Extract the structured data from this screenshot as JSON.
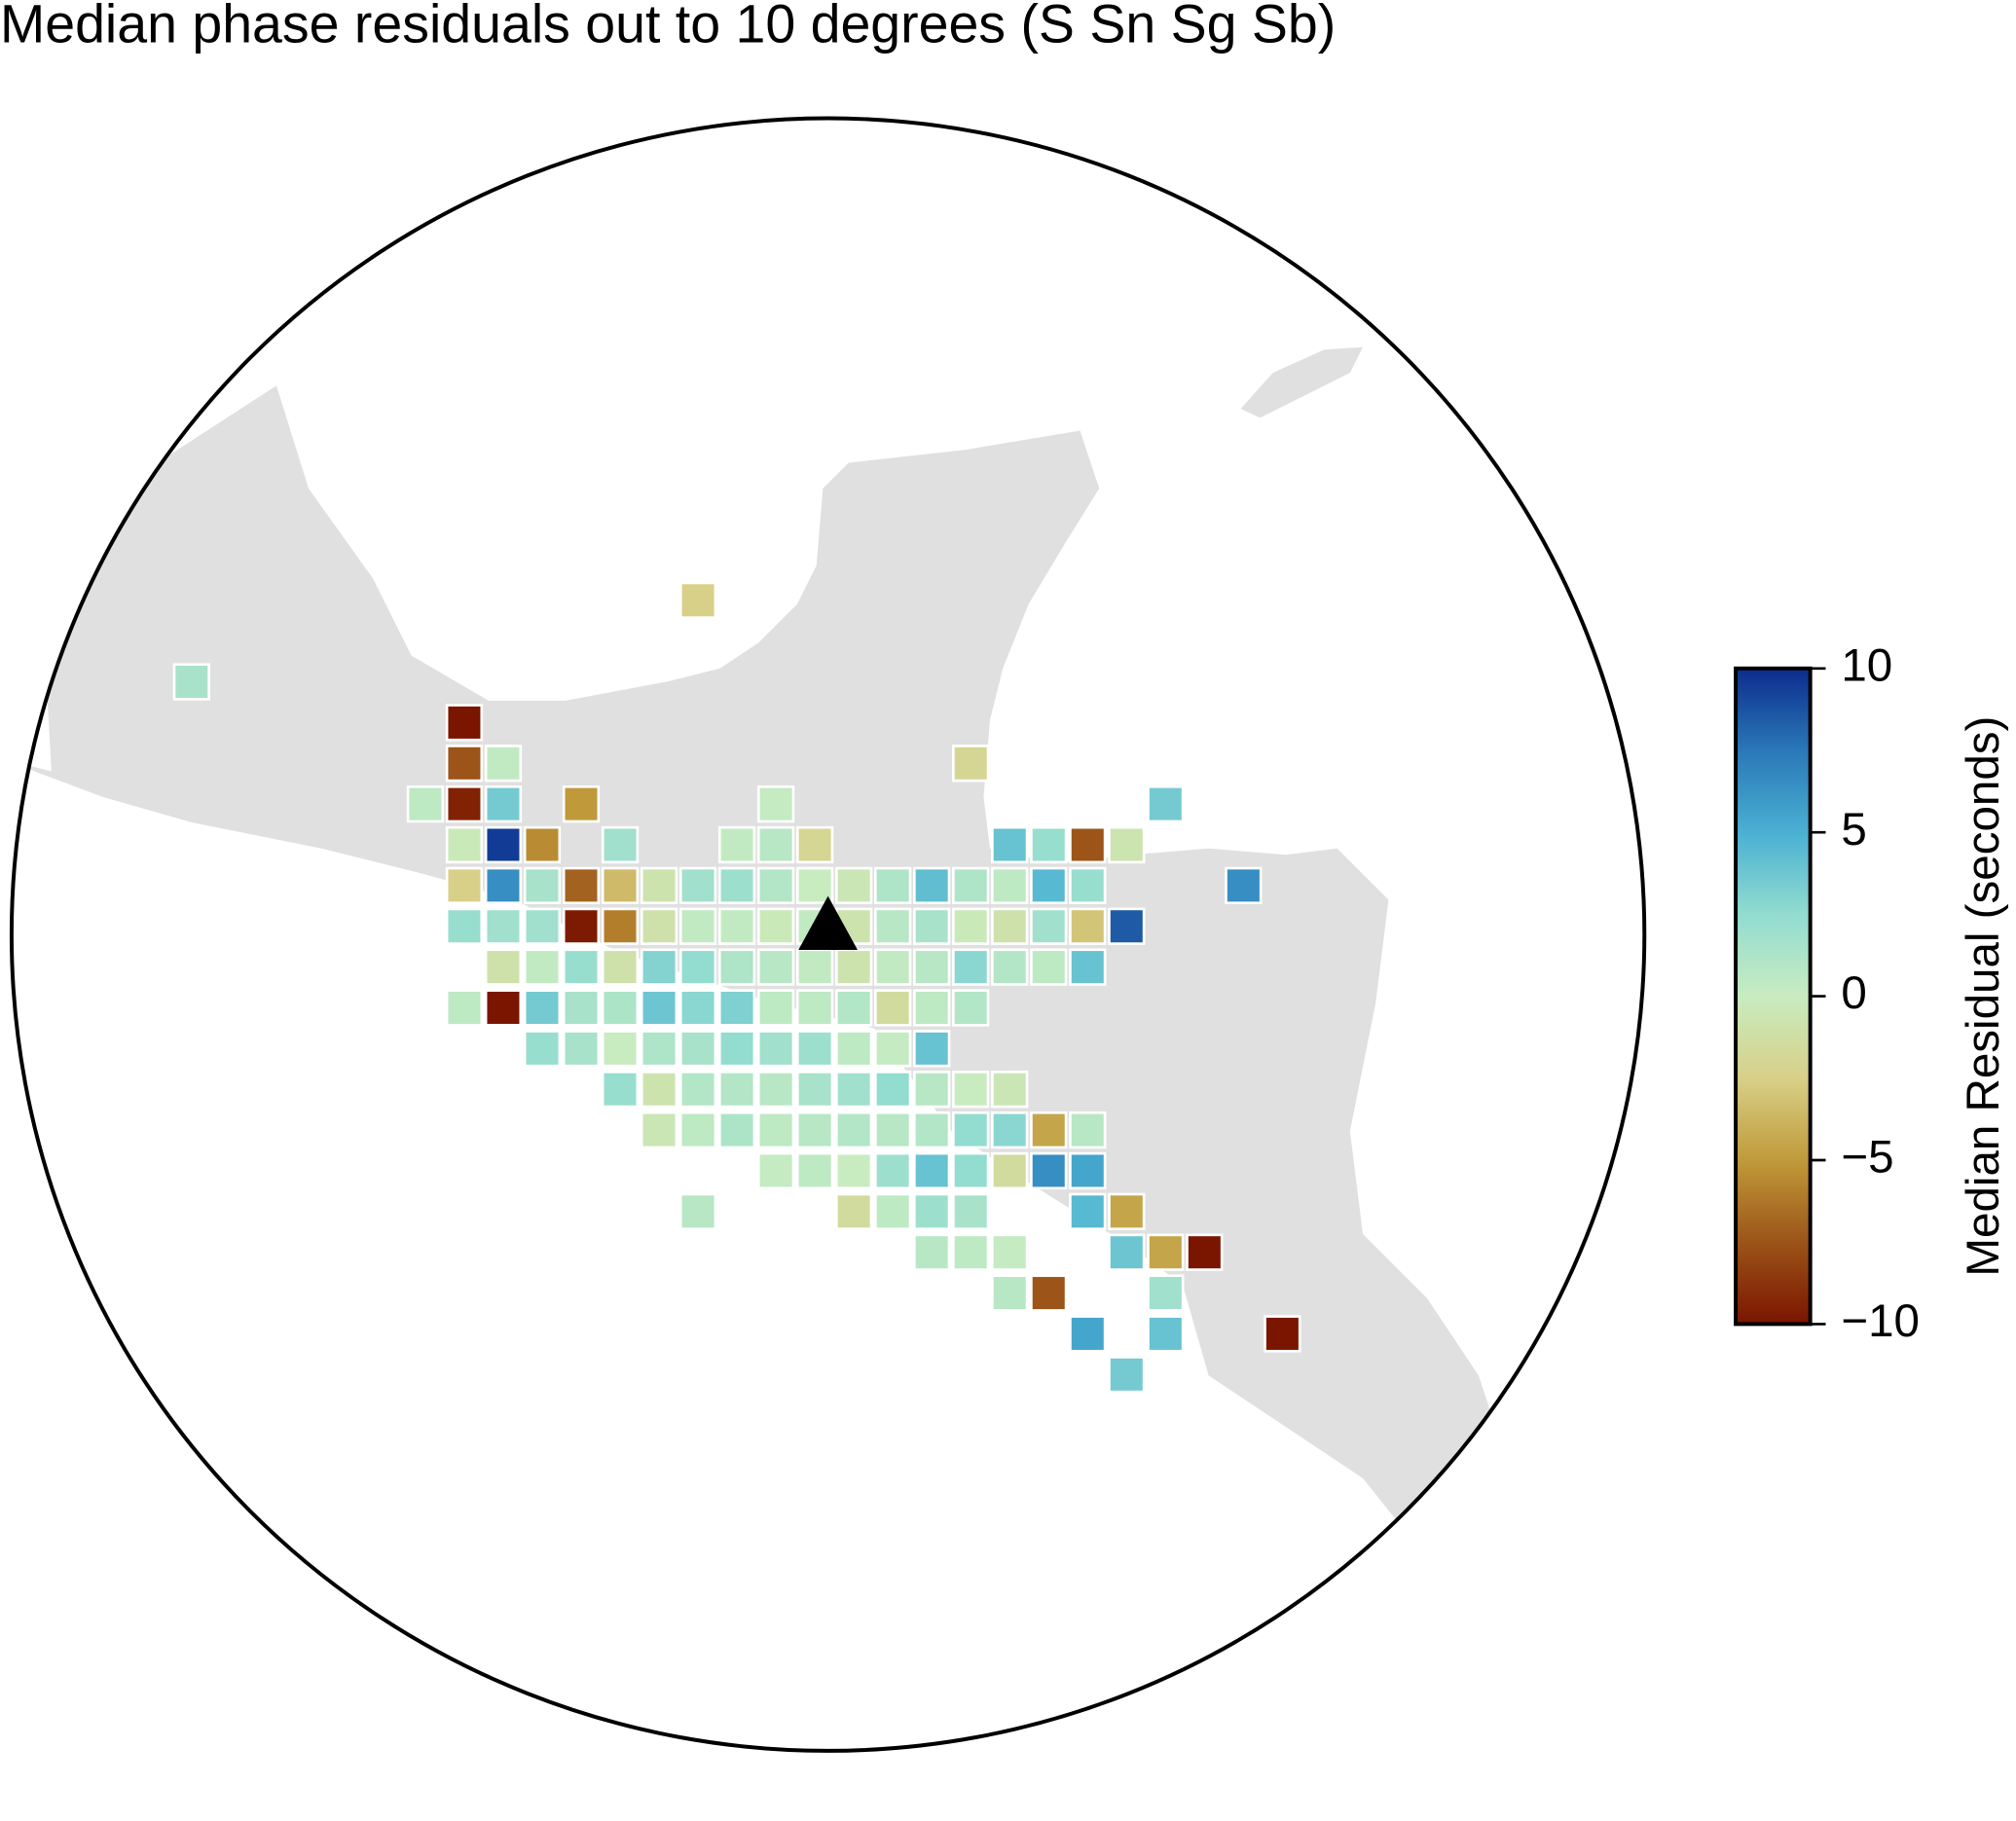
{
  "title": "Median phase residuals out to 10 degrees (S Sn Sg Sb)",
  "map": {
    "cells": [
      [
        null,
        null,
        null,
        null,
        null,
        null,
        null,
        null,
        null,
        null,
        null,
        null,
        null,
        -2.5,
        null,
        null,
        null,
        null,
        null,
        null,
        null,
        null,
        null,
        null,
        null,
        null,
        null,
        null,
        null
      ],
      [
        null,
        null,
        null,
        null,
        null,
        null,
        null,
        null,
        null,
        null,
        null,
        null,
        null,
        null,
        null,
        null,
        null,
        null,
        null,
        null,
        null,
        null,
        null,
        null,
        null,
        null,
        null,
        null,
        null
      ],
      [
        1.5,
        null,
        null,
        null,
        null,
        null,
        null,
        null,
        null,
        null,
        null,
        null,
        null,
        null,
        null,
        null,
        null,
        null,
        null,
        null,
        null,
        null,
        null,
        null,
        null,
        null,
        null,
        null,
        null
      ],
      [
        null,
        null,
        null,
        null,
        null,
        null,
        null,
        -10,
        null,
        null,
        null,
        null,
        null,
        null,
        null,
        null,
        null,
        null,
        null,
        null,
        null,
        null,
        null,
        null,
        null,
        null,
        null,
        null,
        null
      ],
      [
        null,
        null,
        null,
        null,
        null,
        null,
        null,
        -7.5,
        0.3,
        null,
        null,
        null,
        null,
        null,
        null,
        null,
        null,
        null,
        null,
        null,
        -2,
        null,
        null,
        null,
        null,
        null,
        null,
        null,
        null
      ],
      [
        null,
        null,
        null,
        null,
        null,
        null,
        0.5,
        -9.5,
        3.5,
        null,
        -5,
        null,
        null,
        null,
        null,
        0.2,
        null,
        null,
        null,
        null,
        null,
        null,
        null,
        null,
        null,
        3.5,
        null,
        null,
        null
      ],
      [
        null,
        null,
        null,
        null,
        null,
        null,
        null,
        -0.3,
        9.5,
        -5.5,
        null,
        1.8,
        null,
        null,
        0.3,
        0.8,
        -2,
        null,
        null,
        null,
        null,
        4,
        2.2,
        -7.5,
        -0.7,
        null,
        null,
        null,
        null
      ],
      [
        null,
        null,
        null,
        null,
        null,
        null,
        null,
        -2.5,
        6.5,
        1.5,
        -7,
        -3.5,
        -0.8,
        1.8,
        2,
        1,
        0,
        -0.5,
        1.2,
        4.2,
        1.2,
        0.5,
        4.5,
        2.2,
        null,
        null,
        null,
        6.5,
        null
      ],
      [
        null,
        null,
        null,
        null,
        null,
        null,
        null,
        2.2,
        1.8,
        1.8,
        -9.8,
        -6,
        -1,
        0.3,
        0.3,
        -0.3,
        0.3,
        -0.8,
        0.8,
        1.5,
        -0.3,
        -1,
        1.8,
        -3,
        8.5,
        null,
        null,
        null,
        null
      ],
      [
        null,
        null,
        null,
        null,
        null,
        null,
        null,
        null,
        -1,
        0.3,
        2.2,
        -1,
        3,
        2.5,
        1.2,
        0.8,
        0.3,
        -0.8,
        0.3,
        0.8,
        2.8,
        1,
        0.5,
        4,
        null,
        null,
        null,
        null,
        null
      ],
      [
        null,
        null,
        null,
        null,
        null,
        null,
        null,
        0.5,
        -10,
        3.5,
        1.5,
        1.3,
        3.8,
        2.8,
        3.2,
        0.5,
        0.5,
        1,
        -1.5,
        0.5,
        1,
        null,
        null,
        null,
        null,
        null,
        null,
        null,
        null
      ],
      [
        null,
        null,
        null,
        null,
        null,
        null,
        null,
        null,
        null,
        2.2,
        1.5,
        0,
        1.2,
        1.5,
        2.5,
        1.8,
        2,
        0.5,
        0.2,
        4,
        null,
        null,
        null,
        null,
        null,
        null,
        null,
        null,
        null
      ],
      [
        null,
        null,
        null,
        null,
        null,
        null,
        null,
        null,
        null,
        null,
        null,
        2.2,
        -0.8,
        1,
        1,
        0.8,
        1.5,
        1.8,
        2.5,
        0.8,
        0,
        -0.5,
        null,
        null,
        null,
        null,
        null,
        null,
        null
      ],
      [
        null,
        null,
        null,
        null,
        null,
        null,
        null,
        null,
        null,
        null,
        null,
        null,
        -0.5,
        0.5,
        1.3,
        0.5,
        0.8,
        1,
        0.8,
        1,
        2.5,
        2.8,
        -4.5,
        0.8,
        null,
        null,
        null,
        null,
        null
      ],
      [
        null,
        null,
        null,
        null,
        null,
        null,
        null,
        null,
        null,
        null,
        null,
        null,
        null,
        null,
        null,
        0.2,
        0.5,
        0,
        2,
        4,
        2.5,
        -1.5,
        6.5,
        5.5,
        null,
        null,
        null,
        null,
        null
      ],
      [
        null,
        null,
        null,
        null,
        null,
        null,
        null,
        null,
        null,
        null,
        null,
        null,
        null,
        0.8,
        null,
        null,
        null,
        -1.5,
        0.5,
        2,
        1.5,
        null,
        null,
        4.5,
        -4.5,
        null,
        null,
        null,
        null
      ],
      [
        null,
        null,
        null,
        null,
        null,
        null,
        null,
        null,
        null,
        null,
        null,
        null,
        null,
        null,
        null,
        null,
        null,
        null,
        null,
        0.8,
        0.5,
        0.2,
        null,
        null,
        3.8,
        -4.5,
        -10,
        null,
        null
      ],
      [
        null,
        null,
        null,
        null,
        null,
        null,
        null,
        null,
        null,
        null,
        null,
        null,
        null,
        null,
        null,
        null,
        null,
        null,
        null,
        null,
        null,
        0.8,
        -7.5,
        null,
        null,
        1.8,
        null,
        null,
        null
      ],
      [
        null,
        null,
        null,
        null,
        null,
        null,
        null,
        null,
        null,
        null,
        null,
        null,
        null,
        null,
        null,
        null,
        null,
        null,
        null,
        null,
        null,
        null,
        null,
        5.5,
        null,
        4,
        null,
        null,
        -10
      ],
      [
        null,
        null,
        null,
        null,
        null,
        null,
        null,
        null,
        null,
        null,
        null,
        null,
        null,
        null,
        null,
        null,
        null,
        null,
        null,
        null,
        null,
        null,
        null,
        null,
        3.5,
        null,
        null,
        null,
        null
      ]
    ]
  },
  "colorbar": {
    "label": "Median Residual (seconds)",
    "lim": [
      -10,
      10
    ],
    "ticks": [
      {
        "value": -10,
        "label": "−10"
      },
      {
        "value": -5,
        "label": "−5"
      },
      0,
      5,
      10
    ],
    "colors": [
      "#7a1500",
      "#9c5418",
      "#c09a3a",
      "#d8d088",
      "#c8ecc0",
      "#92dcd0",
      "#4ab0d2",
      "#2a78b8",
      "#0c2c8c"
    ]
  }
}
